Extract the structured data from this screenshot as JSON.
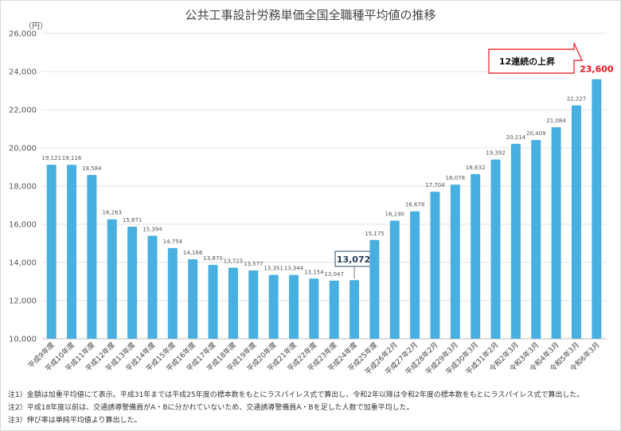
{
  "chart_data": {
    "type": "bar",
    "title": "公共工事設計労務単価全国全職種平均値の推移",
    "ylabel": "（円）",
    "xlabel": "",
    "ylim": [
      10000,
      26000
    ],
    "yticks": [
      10000,
      12000,
      14000,
      16000,
      18000,
      20000,
      22000,
      24000,
      26000
    ],
    "ytick_labels": [
      "10,000",
      "12,000",
      "14,000",
      "16,000",
      "18,000",
      "20,000",
      "22,000",
      "24,000",
      "26,000"
    ],
    "grid": true,
    "categories": [
      "平成9年度",
      "平成10年度",
      "平成11年度",
      "平成12年度",
      "平成13年度",
      "平成14年度",
      "平成15年度",
      "平成16年度",
      "平成17年度",
      "平成18年度",
      "平成19年度",
      "平成20年度",
      "平成21年度",
      "平成22年度",
      "平成23年度",
      "平成24年度",
      "平成25年度",
      "平成26年2月",
      "平成27年2月",
      "平成28年2月",
      "平成29年3月",
      "平成30年3月",
      "平成31年2月",
      "令和2年3月",
      "令和3年3月",
      "令和4年3月",
      "令和5年3月",
      "令和6年3月"
    ],
    "values": [
      19121,
      19116,
      18584,
      16263,
      15871,
      15394,
      14754,
      14166,
      13870,
      13723,
      13577,
      13351,
      13344,
      13154,
      13047,
      13072,
      15175,
      16190,
      16678,
      17704,
      18078,
      18632,
      19392,
      20214,
      20409,
      21084,
      22227,
      23600
    ],
    "value_labels": [
      "19,121",
      "19,116",
      "18,584",
      "16,263",
      "15,871",
      "15,394",
      "14,754",
      "14,166",
      "13,870",
      "13,723",
      "13,577",
      "13,351",
      "13,344",
      "13,154",
      "13,047",
      "13,072",
      "15,175",
      "16,190",
      "16,678",
      "17,704",
      "18,078",
      "18,632",
      "19,392",
      "20,214",
      "20,409",
      "21,084",
      "22,227",
      "23,600"
    ],
    "bar_color": "#47b0e0",
    "highlight_color": "#e8141c",
    "annotations": {
      "min_callout": "13,072",
      "max_callout": "12連続の上昇"
    }
  },
  "notes": [
    "注1）金額は加重平均値にて表示。平成31年までは平成25年度の標本数をもとにラスパイレス式で算出し、令和2年以降は令和2年度の標本数をもとにラスパイレス式で算出した。",
    "注2）平成18年度以前は、交通誘導警備員がA・Bに分かれていないため、交通誘導警備員A・Bを足した人数で加重平均した。",
    "注3）伸び率は単純平均値より算出した。"
  ]
}
